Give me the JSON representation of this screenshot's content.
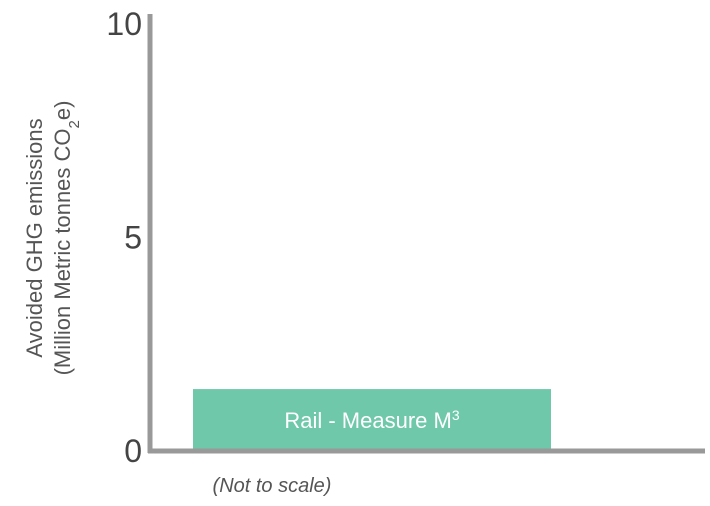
{
  "chart_data": {
    "type": "bar",
    "categories": [
      "Rail - Measure M³"
    ],
    "values": [
      1.45
    ],
    "ylim": [
      0,
      10
    ],
    "yticks": [
      0,
      5,
      10
    ],
    "ylabel_line1": "Avoided GHG emissions",
    "ylabel_line2_main": "(Million Metric tonnes CO",
    "ylabel_line2_sub": "2",
    "ylabel_line2_end": "e)",
    "bar_label_main": "Rail - Measure M",
    "bar_label_sup": "3",
    "note": "(Not to scale)",
    "bar_color": "#6ec8a9",
    "axis_color": "#999999",
    "grid": false
  }
}
